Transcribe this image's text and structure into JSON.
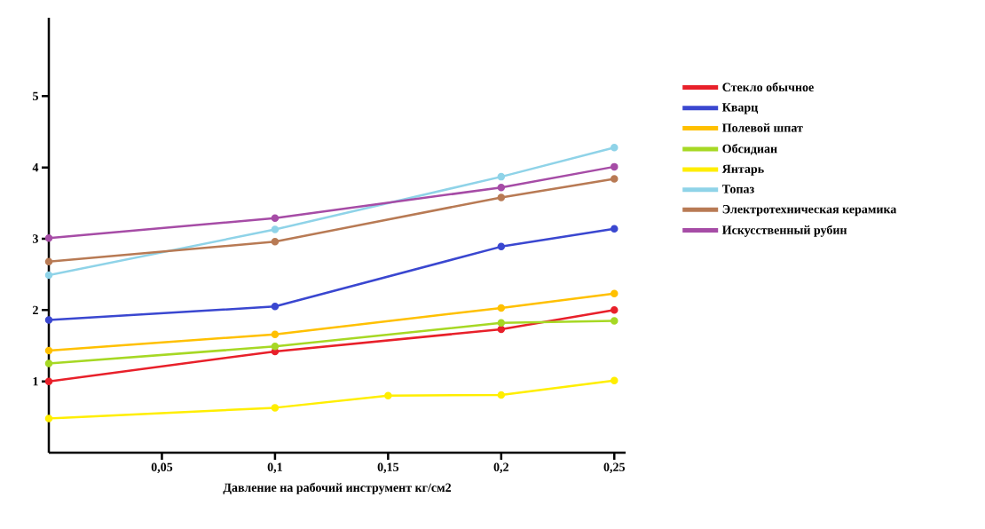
{
  "chart_data": {
    "type": "line",
    "xlabel": "Давление на рабочий инструмент кг/см2",
    "x": [
      0,
      0.1,
      0.2,
      0.25
    ],
    "xlim": [
      0,
      0.255
    ],
    "ylim": [
      0,
      6.1
    ],
    "xticks": [
      {
        "value": 0.05,
        "label": "0,05"
      },
      {
        "value": 0.1,
        "label": "0,1"
      },
      {
        "value": 0.15,
        "label": "0,15"
      },
      {
        "value": 0.2,
        "label": "0,2"
      },
      {
        "value": 0.25,
        "label": "0,25"
      }
    ],
    "yticks": [
      1,
      2,
      3,
      4,
      5
    ],
    "marker": "circle",
    "legend": "right",
    "grid": false,
    "series": [
      {
        "name": "Стекло обычное",
        "color": "#e8202a",
        "values": [
          1.0,
          1.42,
          1.73,
          2.0
        ]
      },
      {
        "name": "Кварц",
        "color": "#3a47d0",
        "values": [
          1.86,
          2.05,
          2.89,
          3.14
        ]
      },
      {
        "name": "Полевой шпат",
        "color": "#ffc000",
        "values": [
          1.43,
          1.66,
          2.03,
          2.23
        ]
      },
      {
        "name": "Обсидиан",
        "color": "#a6d824",
        "values": [
          1.25,
          1.49,
          1.82,
          1.85
        ]
      },
      {
        "name": "Янтарь",
        "color": "#ffee00",
        "x": [
          0,
          0.1,
          0.15,
          0.2,
          0.25
        ],
        "values": [
          0.48,
          0.63,
          0.8,
          0.81,
          1.01
        ]
      },
      {
        "name": "Топаз",
        "color": "#8fd3e8",
        "values": [
          2.49,
          3.13,
          3.87,
          4.28
        ]
      },
      {
        "name": "Электротехническая керамика",
        "color": "#b87a54",
        "values": [
          2.68,
          2.96,
          3.58,
          3.84
        ]
      },
      {
        "name": "Искусственный рубин",
        "color": "#a64ca6",
        "values": [
          3.01,
          3.29,
          3.72,
          4.01
        ]
      }
    ]
  }
}
